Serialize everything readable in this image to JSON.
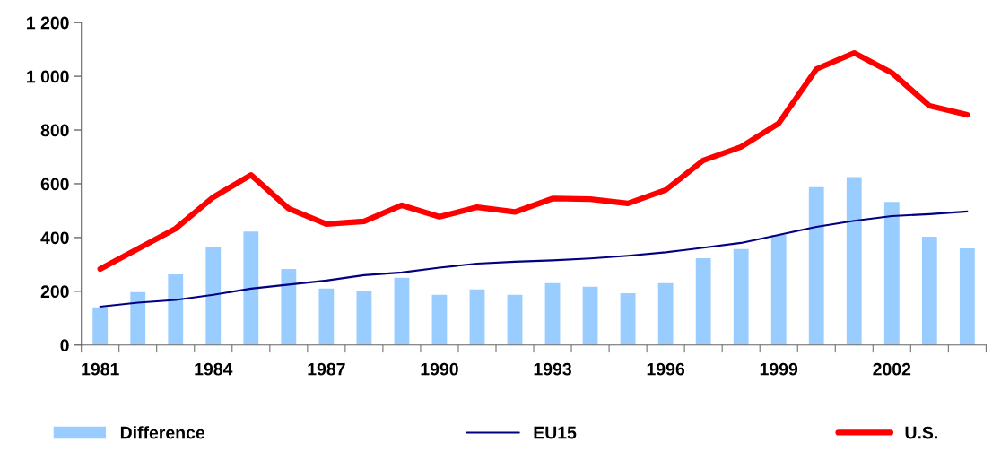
{
  "chart_data": {
    "type": "bar",
    "categories": [
      "1981",
      null,
      null,
      "1984",
      null,
      null,
      "1987",
      null,
      null,
      "1990",
      null,
      null,
      "1993",
      null,
      null,
      "1996",
      null,
      null,
      "1999",
      null,
      null,
      "2002",
      null,
      null
    ],
    "series": [
      {
        "name": "Difference",
        "color": "#99ccff",
        "values": [
          140,
          197,
          263,
          363,
          422,
          283,
          210,
          203,
          250,
          187,
          207,
          187,
          230,
          217,
          193,
          230,
          323,
          357,
          410,
          587,
          625,
          532,
          403,
          360
        ]
      },
      {
        "name": "EU15",
        "type": "line",
        "color": "#000080",
        "values": [
          143,
          158,
          168,
          187,
          210,
          225,
          240,
          260,
          270,
          288,
          303,
          310,
          315,
          322,
          332,
          345,
          362,
          380,
          410,
          440,
          462,
          480,
          487,
          497
        ]
      },
      {
        "name": "U.S.",
        "type": "line",
        "color": "#ff0000",
        "values": [
          283,
          358,
          433,
          550,
          633,
          508,
          450,
          460,
          520,
          477,
          513,
          495,
          545,
          543,
          527,
          577,
          687,
          737,
          825,
          1027,
          1087,
          1013,
          890,
          857
        ]
      }
    ],
    "ylim": [
      0,
      1200
    ],
    "yticks": [
      0,
      200,
      400,
      600,
      800,
      {
        "value": 1000,
        "label": "1 000"
      },
      {
        "value": 1200,
        "label": "1 200"
      }
    ],
    "grid": false,
    "legend": "bottom"
  }
}
